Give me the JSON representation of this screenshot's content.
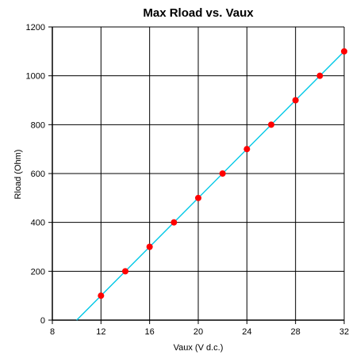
{
  "chart_data": {
    "type": "scatter",
    "title": "Max Rload vs. Vaux",
    "xlabel": "Vaux (V d.c.)",
    "ylabel": "Rload (Ohm)",
    "xlim": [
      8,
      32
    ],
    "ylim": [
      0,
      1200
    ],
    "xticks": [
      8,
      12,
      16,
      20,
      24,
      28,
      32
    ],
    "yticks": [
      0,
      200,
      400,
      600,
      800,
      1000,
      1200
    ],
    "grid": true,
    "series": [
      {
        "kind": "points",
        "color": "#ff0000",
        "x": [
          12,
          14,
          16,
          18,
          20,
          22,
          24,
          26,
          28,
          30,
          32
        ],
        "y": [
          100,
          200,
          300,
          400,
          500,
          600,
          700,
          800,
          900,
          1000,
          1100
        ]
      },
      {
        "kind": "line",
        "color": "#00c8e6",
        "x": [
          10,
          32
        ],
        "y": [
          0,
          1100
        ]
      }
    ]
  }
}
